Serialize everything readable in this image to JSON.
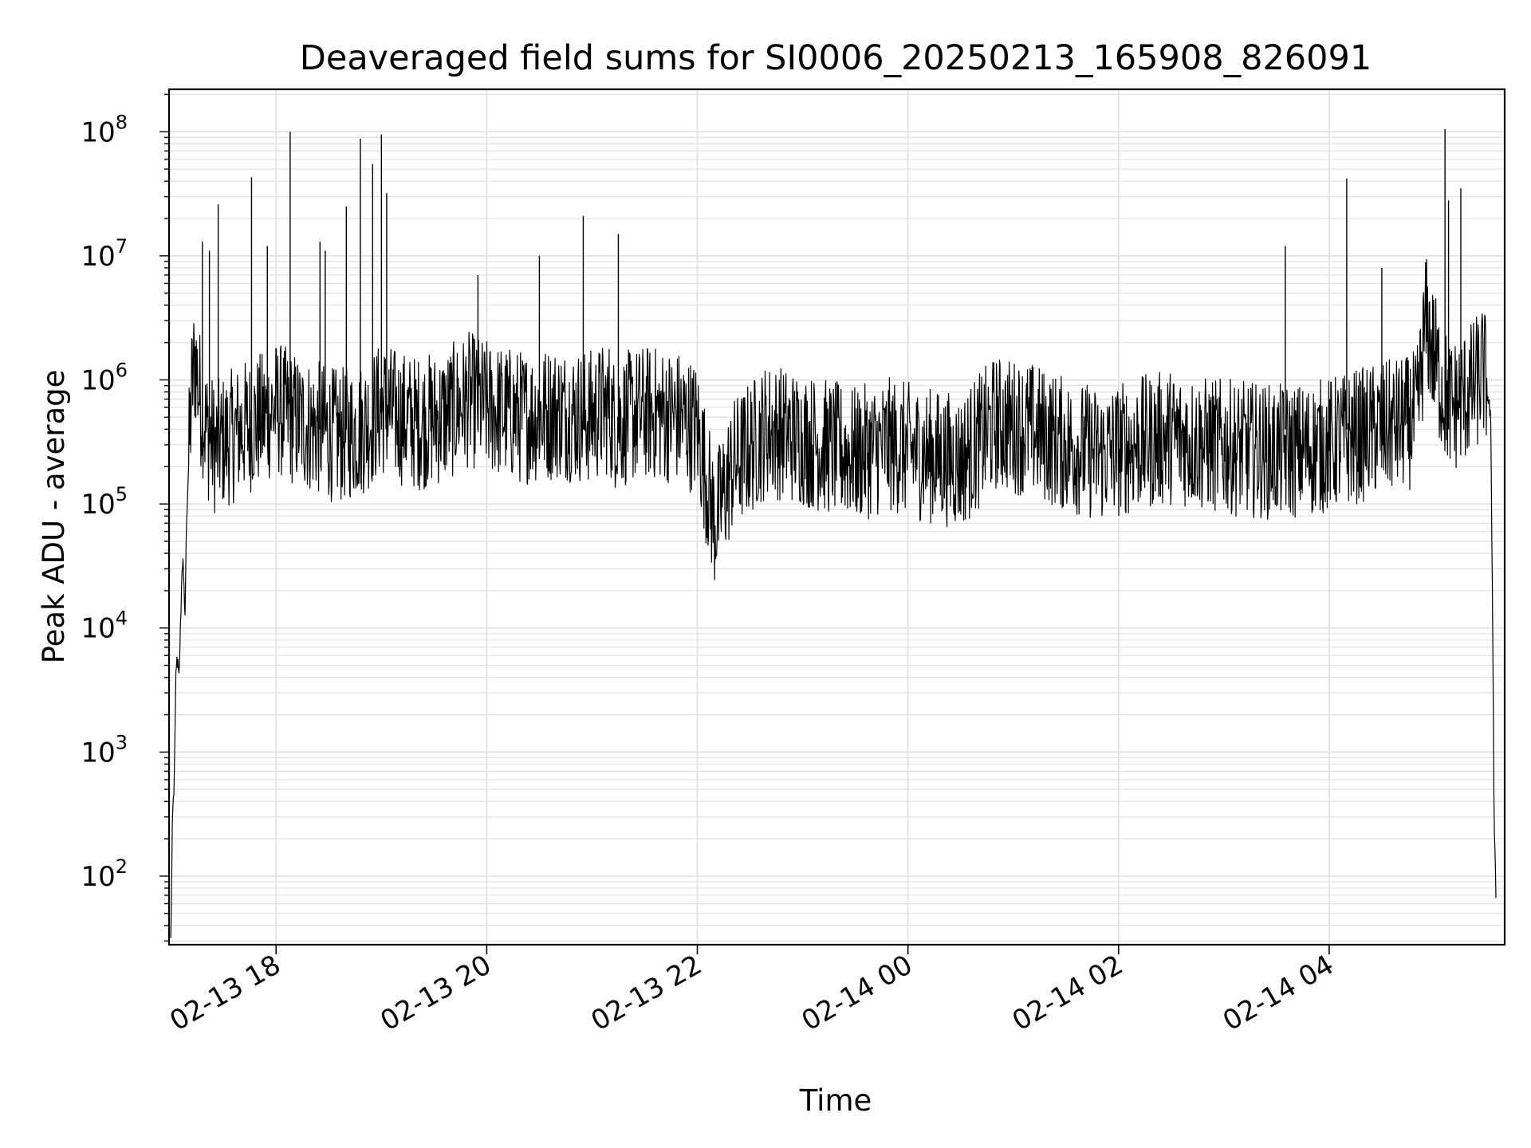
{
  "chart_data": {
    "type": "line",
    "title": "Deaveraged field sums for SI0006_20250213_165908_826091",
    "xlabel": "Time",
    "ylabel": "Peak ADU - average",
    "yscale": "log",
    "ylim": [
      28,
      220000000
    ],
    "xlim": [
      "2025-02-13 16:59",
      "2025-02-14 05:40"
    ],
    "grid": true,
    "x_tick_labels": [
      "02-13 18",
      "02-13 20",
      "02-13 22",
      "02-14 00",
      "02-14 02",
      "02-14 04"
    ],
    "y_tick_labels": [
      {
        "base": "10",
        "exp": "2"
      },
      {
        "base": "10",
        "exp": "3"
      },
      {
        "base": "10",
        "exp": "4"
      },
      {
        "base": "10",
        "exp": "5"
      },
      {
        "base": "10",
        "exp": "6"
      },
      {
        "base": "10",
        "exp": "7"
      },
      {
        "base": "10",
        "exp": "8"
      }
    ],
    "series": [
      {
        "color": "#000000",
        "x": [
          "2025-02-13 17:00",
          "2025-02-13 17:01",
          "2025-02-13 17:02",
          "2025-02-13 17:03",
          "2025-02-13 17:04",
          "2025-02-13 17:05",
          "2025-02-13 17:06",
          "2025-02-13 17:07",
          "2025-02-13 17:08",
          "2025-02-13 17:09",
          "2025-02-13 17:10",
          "2025-02-13 17:12",
          "2025-02-13 17:14",
          "2025-02-13 17:16",
          "2025-02-13 17:18",
          "2025-02-13 17:20",
          "2025-02-13 17:22",
          "2025-02-13 17:24",
          "2025-02-13 17:26",
          "2025-02-13 17:28",
          "2025-02-13 17:30",
          "2025-02-13 17:35",
          "2025-02-13 17:40",
          "2025-02-13 17:48",
          "2025-02-13 17:54",
          "2025-02-13 18:00",
          "2025-02-13 18:08",
          "2025-02-13 18:15",
          "2025-02-13 18:25",
          "2025-02-13 18:35",
          "2025-02-13 18:48",
          "2025-02-13 18:56",
          "2025-02-13 19:00",
          "2025-02-13 19:05",
          "2025-02-13 19:10",
          "2025-02-13 19:20",
          "2025-02-13 19:35",
          "2025-02-13 19:50",
          "2025-02-13 20:00",
          "2025-02-13 20:20",
          "2025-02-13 20:40",
          "2025-02-13 20:58",
          "2025-02-13 21:10",
          "2025-02-13 21:12",
          "2025-02-13 21:30",
          "2025-02-13 21:50",
          "2025-02-13 22:00",
          "2025-02-13 22:10",
          "2025-02-13 22:20",
          "2025-02-13 22:40",
          "2025-02-13 22:55",
          "2025-02-13 23:10",
          "2025-02-13 23:30",
          "2025-02-13 23:50",
          "2025-02-14 00:10",
          "2025-02-14 00:30",
          "2025-02-14 00:50",
          "2025-02-14 01:10",
          "2025-02-14 01:30",
          "2025-02-14 01:50",
          "2025-02-14 02:10",
          "2025-02-14 02:30",
          "2025-02-14 02:50",
          "2025-02-14 03:10",
          "2025-02-14 03:30",
          "2025-02-14 03:45",
          "2025-02-14 04:00",
          "2025-02-14 04:15",
          "2025-02-14 04:30",
          "2025-02-14 04:45",
          "2025-02-14 04:50",
          "2025-02-14 04:55",
          "2025-02-14 05:00",
          "2025-02-14 05:05",
          "2025-02-14 05:10",
          "2025-02-14 05:15",
          "2025-02-14 05:20",
          "2025-02-14 05:25",
          "2025-02-14 05:28",
          "2025-02-14 05:30",
          "2025-02-14 05:32",
          "2025-02-14 05:33",
          "2025-02-14 05:34",
          "2025-02-14 05:35"
        ],
        "y": [
          30,
          300,
          600,
          5000,
          5500,
          4500,
          20000,
          40000,
          10000,
          80000,
          180000,
          900000,
          1500000,
          800000,
          600000,
          400000,
          350000,
          300000,
          280000,
          300000,
          320000,
          350000,
          400000,
          450000,
          500000,
          600000,
          500000,
          450000,
          400000,
          350000,
          400000,
          500000,
          600000,
          550000,
          500000,
          450000,
          500000,
          700000,
          600000,
          500000,
          550000,
          500000,
          600000,
          450000,
          550000,
          500000,
          400000,
          70000,
          200000,
          400000,
          350000,
          300000,
          250000,
          300000,
          250000,
          220000,
          450000,
          400000,
          300000,
          250000,
          300000,
          350000,
          300000,
          280000,
          260000,
          270000,
          300000,
          350000,
          400000,
          450000,
          500000,
          3000000,
          1500000,
          800000,
          600000,
          700000,
          800000,
          1000000,
          1200000,
          800000,
          500000,
          20000,
          300,
          70
        ]
      }
    ],
    "spikes": [
      {
        "x": "2025-02-13 17:18",
        "y": 13000000
      },
      {
        "x": "2025-02-13 17:22",
        "y": 11000000
      },
      {
        "x": "2025-02-13 17:27",
        "y": 26000000
      },
      {
        "x": "2025-02-13 17:46",
        "y": 43000000
      },
      {
        "x": "2025-02-13 17:55",
        "y": 12000000
      },
      {
        "x": "2025-02-13 18:08",
        "y": 100000000
      },
      {
        "x": "2025-02-13 18:25",
        "y": 13000000
      },
      {
        "x": "2025-02-13 18:28",
        "y": 11000000
      },
      {
        "x": "2025-02-13 18:40",
        "y": 25000000
      },
      {
        "x": "2025-02-13 18:48",
        "y": 88000000
      },
      {
        "x": "2025-02-13 18:55",
        "y": 55000000
      },
      {
        "x": "2025-02-13 19:00",
        "y": 95000000
      },
      {
        "x": "2025-02-13 19:03",
        "y": 32000000
      },
      {
        "x": "2025-02-13 19:55",
        "y": 7000000
      },
      {
        "x": "2025-02-13 20:30",
        "y": 10000000
      },
      {
        "x": "2025-02-13 20:55",
        "y": 21000000
      },
      {
        "x": "2025-02-13 21:15",
        "y": 15000000
      },
      {
        "x": "2025-02-14 03:35",
        "y": 12000000
      },
      {
        "x": "2025-02-14 04:10",
        "y": 42000000
      },
      {
        "x": "2025-02-14 04:30",
        "y": 8000000
      },
      {
        "x": "2025-02-14 05:06",
        "y": 105000000
      },
      {
        "x": "2025-02-14 05:08",
        "y": 28000000
      },
      {
        "x": "2025-02-14 05:15",
        "y": 35000000
      }
    ]
  }
}
